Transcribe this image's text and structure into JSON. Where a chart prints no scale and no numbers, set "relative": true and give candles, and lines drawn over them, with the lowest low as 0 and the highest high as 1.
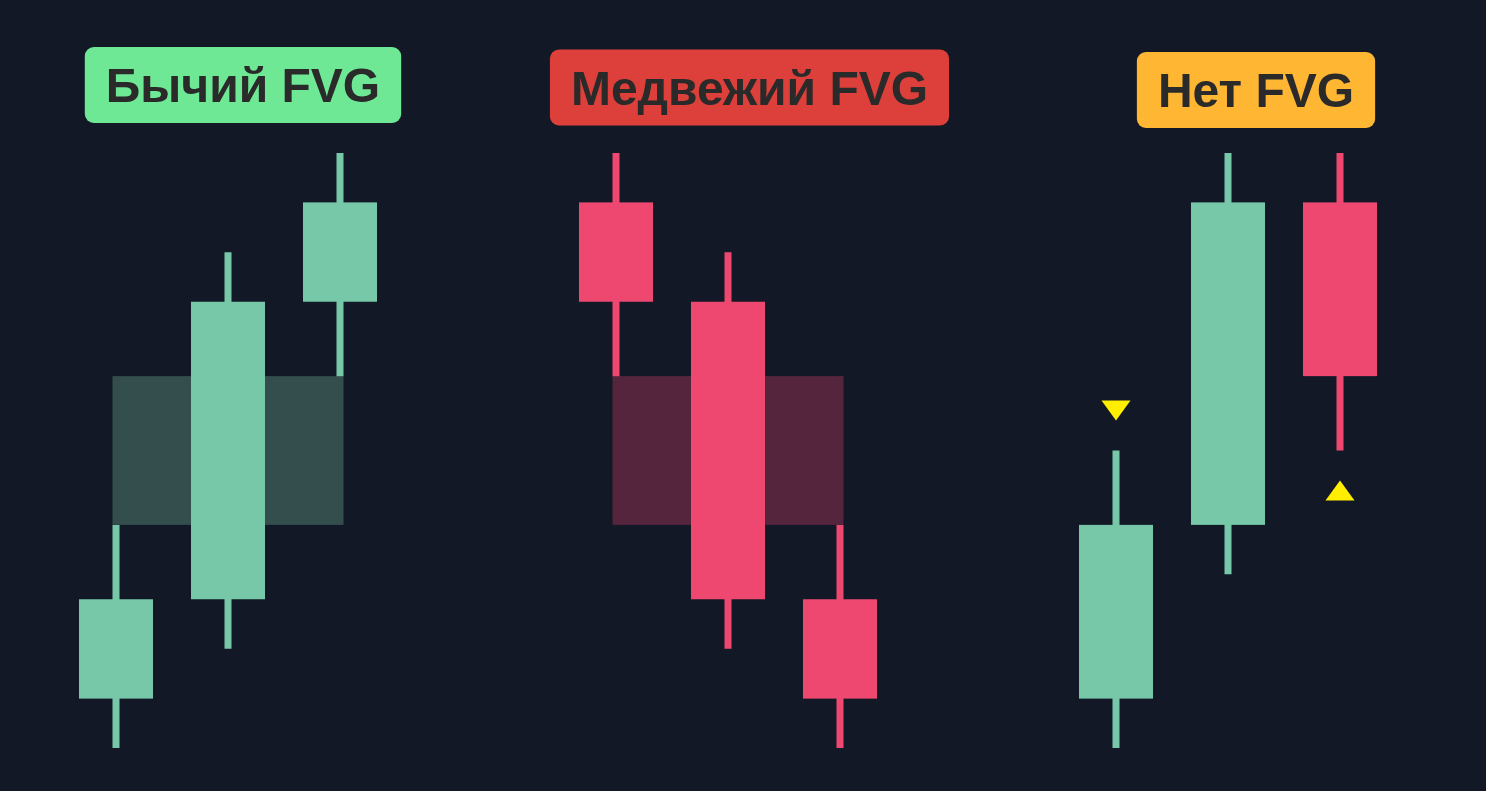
{
  "chart_data": [
    {
      "type": "candlestick",
      "title": "Бычий FVG",
      "relative": true,
      "categories": [
        null,
        null,
        null
      ],
      "ohlc": [
        [
          0.083,
          0.375,
          0,
          0.25
        ],
        [
          0.25,
          0.833,
          0.167,
          0.75
        ],
        [
          0.75,
          1,
          0.625,
          0.917
        ]
      ],
      "colors": [
        "#76c8a8",
        "#76c8a8",
        "#76c8a8"
      ],
      "bands": [
        {
          "axis": "y",
          "from": 0.375,
          "to": 0.625,
          "color": "#334e4c"
        }
      ]
    },
    {
      "type": "candlestick",
      "title": "Медвежий FVG",
      "relative": true,
      "categories": [
        null,
        null,
        null
      ],
      "ohlc": [
        [
          0.917,
          1,
          0.625,
          0.75
        ],
        [
          0.75,
          0.833,
          0.167,
          0.25
        ],
        [
          0.25,
          0.375,
          0,
          0.083
        ]
      ],
      "colors": [
        "#ee4870",
        "#ee4870",
        "#ee4870"
      ],
      "bands": [
        {
          "axis": "y",
          "from": 0.375,
          "to": 0.625,
          "color": "#55253d"
        }
      ]
    },
    {
      "type": "candlestick",
      "title": "Нет FVG",
      "relative": true,
      "categories": [
        null,
        null,
        null
      ],
      "ohlc": [
        [
          0.083,
          0.5,
          0,
          0.375
        ],
        [
          0.375,
          1,
          0.292,
          0.917
        ],
        [
          0.917,
          1,
          0.5,
          0.625
        ]
      ],
      "colors": [
        "#76c8a8",
        "#76c8a8",
        "#ee4870"
      ]
    }
  ]
}
